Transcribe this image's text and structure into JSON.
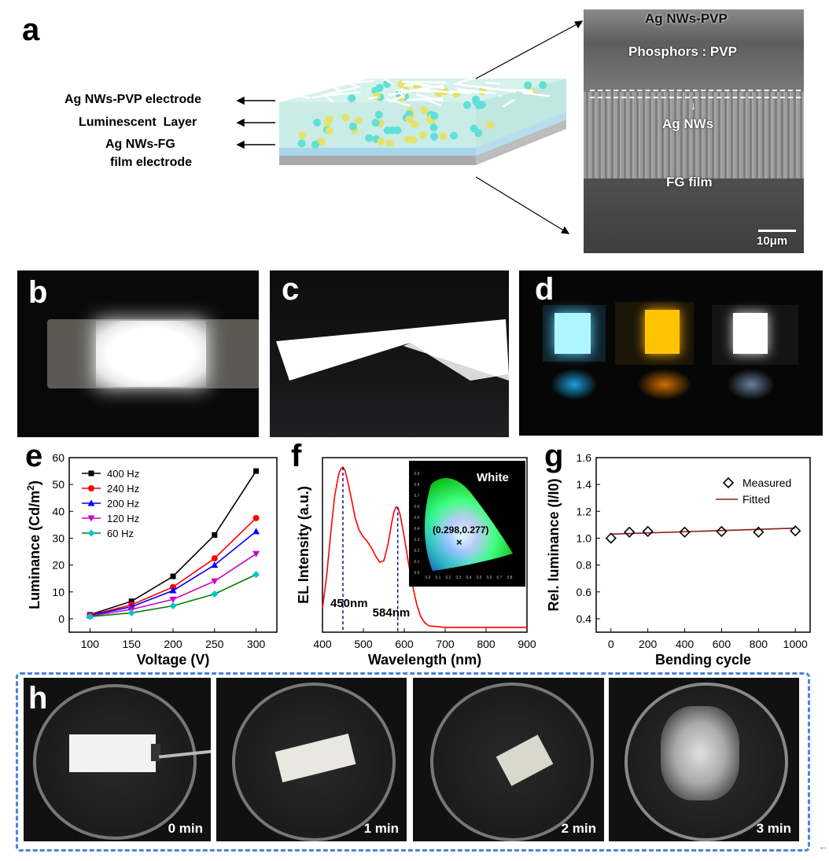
{
  "panel_labels": {
    "a": "a",
    "b": "b",
    "c": "c",
    "d": "d",
    "e": "e",
    "f": "f",
    "g": "g",
    "h": "h"
  },
  "panel_a": {
    "layers": [
      {
        "label": "Ag NWs-PVP electrode"
      },
      {
        "label": "Luminescent  Layer"
      },
      {
        "label_line1": "Ag NWs-FG",
        "label_line2": "film electrode"
      }
    ],
    "sem": {
      "top": "Ag NWs-PVP",
      "phosphor": "Phosphors : PVP",
      "agnws": "Ag NWs",
      "fg": "FG film",
      "scale_bar": "10μm"
    },
    "colors": {
      "cyan_particle": "#5fe0d8",
      "yellow_particle": "#e4e26a",
      "layer": "#cdeee8"
    }
  },
  "panel_h": {
    "times": [
      "0 min",
      "1 min",
      "2 min",
      "3 min"
    ]
  },
  "chart_data": [
    {
      "type": "line",
      "panel": "e",
      "xlabel": "Voltage (V)",
      "ylabel": "Luminance (Cd/m",
      "ylabel_sup": "2",
      "ylabel_tail": ")",
      "x": [
        100,
        150,
        200,
        250,
        300
      ],
      "xlim": [
        75,
        325
      ],
      "ylim": [
        -5,
        60
      ],
      "xticks": [
        "100",
        "150",
        "200",
        "250",
        "300"
      ],
      "yticks": [
        "0",
        "10",
        "20",
        "30",
        "40",
        "50",
        "60"
      ],
      "legend_position": "top-left",
      "series": [
        {
          "name": "400 Hz",
          "color": "#000000",
          "marker": "square",
          "values": [
            1.5,
            6.5,
            15.8,
            31.2,
            55
          ]
        },
        {
          "name": "240 Hz",
          "color": "#ff0000",
          "marker": "circle",
          "values": [
            1.3,
            5.2,
            11.8,
            22.5,
            37.5
          ]
        },
        {
          "name": "200 Hz",
          "color": "#0000ff",
          "marker": "triangle-up",
          "values": [
            1.2,
            4.5,
            10.5,
            20,
            32.5
          ]
        },
        {
          "name": "120 Hz",
          "color": "#cc00cc",
          "marker": "triangle-down",
          "values": [
            1.0,
            3.5,
            7.2,
            14,
            24.2
          ]
        },
        {
          "name": "60 Hz",
          "color": "#008000",
          "marker": "diamond",
          "values": [
            0.8,
            2.2,
            4.8,
            9.2,
            16.5
          ]
        }
      ],
      "extra_series": {
        "name": "60 Hz markers",
        "color": "#00c8c8"
      }
    },
    {
      "type": "line",
      "panel": "f",
      "xlabel": "Wavelength (nm)",
      "ylabel": "EL Intensity (a.u.)",
      "xlim": [
        400,
        900
      ],
      "xticks": [
        "400",
        "500",
        "600",
        "700",
        "800",
        "900"
      ],
      "ylim": [
        0,
        1.1
      ],
      "series": [
        {
          "name": "EL spectrum",
          "color": "#ff0000",
          "x": [
            400,
            410,
            420,
            430,
            440,
            445,
            450,
            455,
            460,
            470,
            480,
            490,
            500,
            510,
            520,
            530,
            540,
            550,
            560,
            570,
            575,
            580,
            585,
            590,
            600,
            610,
            620,
            630,
            640,
            650,
            660,
            700,
            750,
            800,
            850,
            900
          ],
          "values": [
            0.15,
            0.35,
            0.62,
            0.86,
            1.0,
            1.03,
            1.04,
            1.02,
            0.97,
            0.85,
            0.72,
            0.64,
            0.6,
            0.57,
            0.53,
            0.48,
            0.44,
            0.45,
            0.55,
            0.7,
            0.76,
            0.79,
            0.78,
            0.74,
            0.6,
            0.44,
            0.3,
            0.18,
            0.1,
            0.06,
            0.04,
            0.03,
            0.03,
            0.03,
            0.03,
            0.03
          ]
        }
      ],
      "annotations": [
        "450nm",
        "584nm"
      ],
      "peaks": [
        450,
        584
      ],
      "inset": {
        "label": "White",
        "coordinate": "(0.298,0.277)",
        "marker": "×",
        "xticks": [
          "0.0",
          "0.1",
          "0.2",
          "0.3",
          "0.4",
          "0.5",
          "0.6",
          "0.7",
          "0.8"
        ],
        "yticks": [
          "0.0",
          "0.1",
          "0.2",
          "0.3",
          "0.4",
          "0.5",
          "0.6",
          "0.7",
          "0.8",
          "0.9"
        ]
      }
    },
    {
      "type": "scatter",
      "panel": "g",
      "xlabel": "Bending cycle",
      "ylabel": "Rel. luminance (I/I0)",
      "xlim": [
        -80,
        1080
      ],
      "ylim": [
        0.3,
        1.6
      ],
      "xticks": [
        "0",
        "200",
        "400",
        "600",
        "800",
        "1000"
      ],
      "yticks": [
        "0.4",
        "0.6",
        "0.8",
        "1.0",
        "1.2",
        "1.4",
        "1.6"
      ],
      "legend_position": "top-right",
      "series": [
        {
          "name": "Measured",
          "color": "#000000",
          "marker": "diamond-open",
          "x": [
            0,
            100,
            200,
            400,
            600,
            800,
            1000
          ],
          "values": [
            1.0,
            1.045,
            1.05,
            1.045,
            1.05,
            1.045,
            1.055
          ]
        },
        {
          "name": "Fitted",
          "color": "#8b1a1a",
          "line": true,
          "x": [
            0,
            1000
          ],
          "values": [
            1.03,
            1.075
          ]
        }
      ]
    }
  ]
}
